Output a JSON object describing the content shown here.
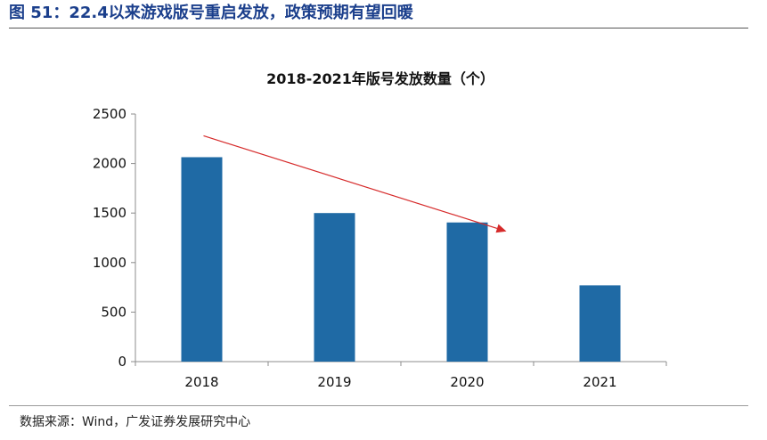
{
  "figure": {
    "title": "图 51：22.4以来游戏版号重启发放，政策预期有望回暖",
    "source": "数据来源：Wind，广发证券发展研究中心"
  },
  "chart_data": {
    "type": "bar",
    "title": "2018-2021年版号发放数量（个）",
    "categories": [
      "2018",
      "2019",
      "2020",
      "2021"
    ],
    "values": [
      2064,
      1500,
      1405,
      770
    ],
    "ylim": [
      0,
      2500
    ],
    "yticks": [
      0,
      500,
      1000,
      1500,
      2000,
      2500
    ],
    "xlabel": "",
    "ylabel": "",
    "grid": false,
    "legend": "none",
    "bar_color": "#1f6aa5",
    "annotation": {
      "type": "arrow",
      "meaning": "declining trend",
      "color": "#d62a2a"
    }
  }
}
